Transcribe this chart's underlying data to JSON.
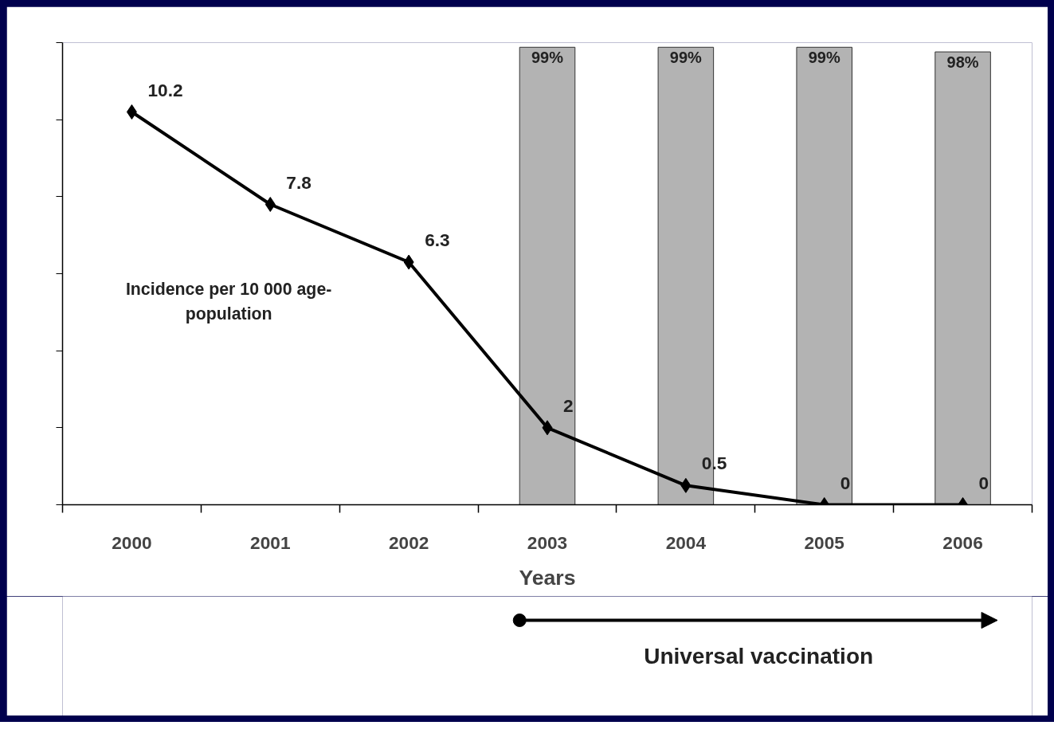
{
  "chart_data": {
    "type": "line",
    "xlabel": "Years",
    "ylabel": "Incidence per 10 000 age-population",
    "categories": [
      "2000",
      "2001",
      "2002",
      "2003",
      "2004",
      "2005",
      "2006"
    ],
    "series": [
      {
        "type": "bar",
        "axis": "y2",
        "color": "#b3b3b3",
        "values": [
          null,
          null,
          null,
          99,
          99,
          99,
          98
        ],
        "value_labels": [
          null,
          null,
          null,
          "99%",
          "99%",
          "99%",
          "98%"
        ]
      },
      {
        "color": "#000000",
        "marker": "diamond",
        "values": [
          10.2,
          7.8,
          6.3,
          2,
          0.5,
          0,
          0
        ],
        "value_labels": [
          "10.2",
          "7.8",
          "6.3",
          "2",
          "0.5",
          "0",
          "0"
        ]
      }
    ],
    "ylim": [
      0,
      12
    ],
    "yticks": [
      {
        "value": 0,
        "label": null
      },
      {
        "value": 2,
        "label": null
      },
      {
        "value": 4,
        "label": null
      },
      {
        "value": 6,
        "label": null
      },
      {
        "value": 8,
        "label": null
      },
      {
        "value": 10,
        "label": null
      },
      {
        "value": 12,
        "label": null
      }
    ],
    "y2lim": [
      0,
      100
    ],
    "tick_labels": "x",
    "grid": false,
    "annotations": [
      "Universal vaccination"
    ]
  }
}
